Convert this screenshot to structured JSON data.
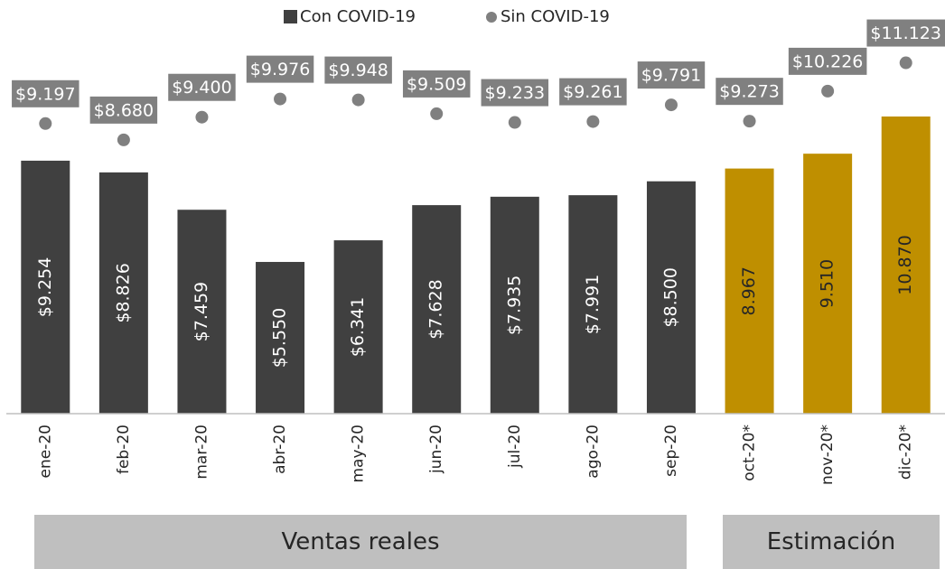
{
  "chart_data": {
    "type": "bar",
    "categories": [
      "ene-20",
      "feb-20",
      "mar-20",
      "abr-20",
      "may-20",
      "jun-20",
      "jul-20",
      "ago-20",
      "sep-20",
      "oct-20*",
      "nov-20*",
      "dic-20*"
    ],
    "series": [
      {
        "name": "Con COVID-19",
        "type": "bar",
        "color": "#404040",
        "colors": [
          "#404040",
          "#404040",
          "#404040",
          "#404040",
          "#404040",
          "#404040",
          "#404040",
          "#404040",
          "#404040",
          "#bf8f00",
          "#bf8f00",
          "#bf8f00"
        ],
        "values": [
          9254,
          8826,
          7459,
          5550,
          6341,
          7628,
          7935,
          7991,
          8500,
          8967,
          9510,
          10870
        ],
        "value_labels": [
          "$9.254",
          "$8.826",
          "$7.459",
          "$5.550",
          "$6.341",
          "$7.628",
          "$7.935",
          "$7.991",
          "$8.500",
          "8.967",
          "9.510",
          "10.870"
        ]
      },
      {
        "name": "Sin COVID-19",
        "type": "scatter",
        "color": "#808080",
        "axis": "y2",
        "values": [
          9197,
          8680,
          9400,
          9976,
          9948,
          9509,
          9233,
          9261,
          9791,
          9273,
          10226,
          11123
        ],
        "value_labels": [
          "$9.197",
          "$8.680",
          "$9.400",
          "$9.976",
          "$9.948",
          "$9.509",
          "$9.233",
          "$9.261",
          "$9.791",
          "$9.273",
          "$10.226",
          "$11.123"
        ]
      }
    ],
    "ylim": [
      0,
      15000
    ],
    "y2lim": [
      0,
      13000
    ],
    "group_labels": [
      "Ventas reales",
      "Estimación"
    ]
  }
}
